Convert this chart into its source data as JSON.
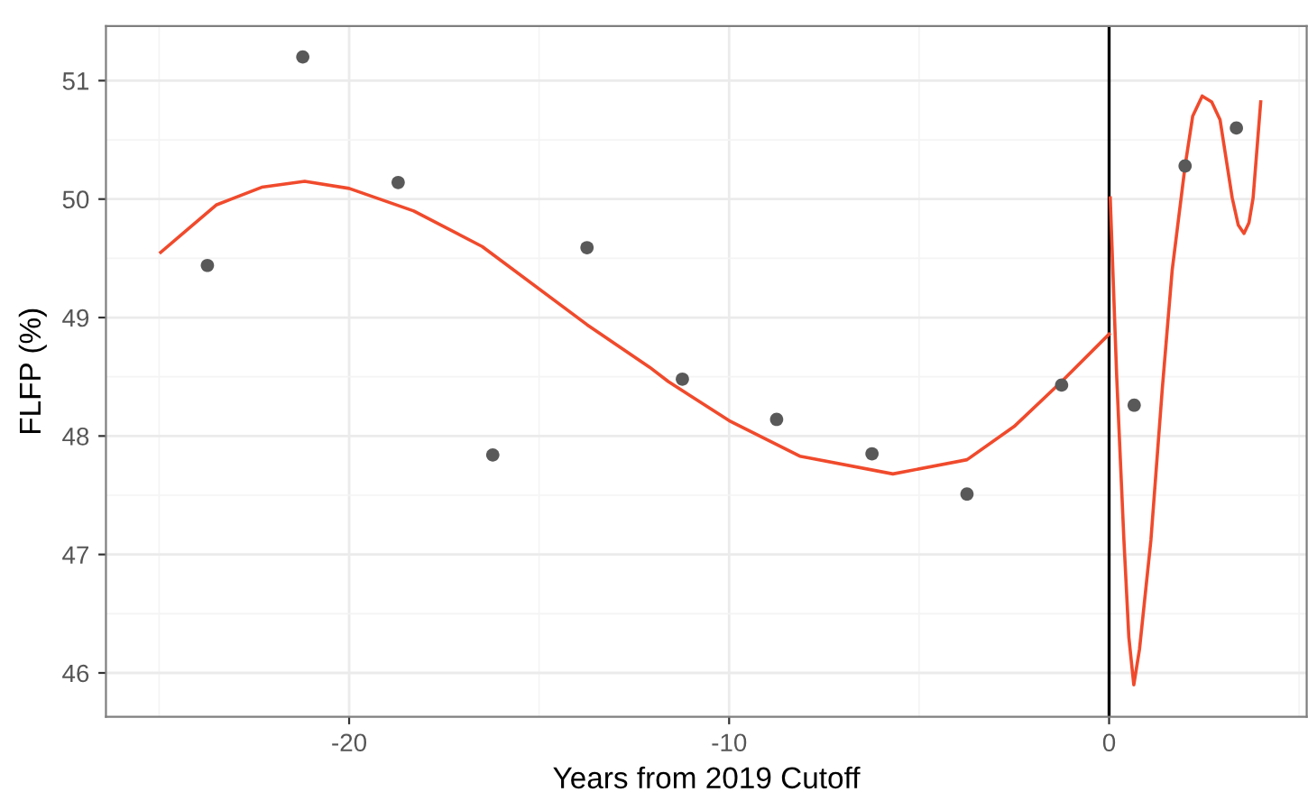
{
  "chart_data": {
    "type": "scatter",
    "xlabel": "Years from 2019 Cutoff",
    "ylabel": "FLFP (%)",
    "xlim": [
      -26.4,
      5.2
    ],
    "ylim": [
      45.63,
      51.46
    ],
    "xticks": [
      -20,
      -10,
      0
    ],
    "yticks": [
      46,
      47,
      48,
      49,
      50,
      51
    ],
    "grid": true,
    "ref_lines": [
      {
        "axis": "x",
        "value": 0,
        "color": "#000000"
      }
    ],
    "series": [
      {
        "color": "#595959",
        "marker": "circle",
        "x": [
          -23.73,
          -21.22,
          -18.71,
          -16.22,
          -13.74,
          -11.23,
          -8.75,
          -6.24,
          -3.74,
          -1.25,
          0.66,
          2.0,
          3.35
        ],
        "values": [
          49.44,
          51.2,
          50.14,
          47.84,
          49.59,
          48.48,
          48.14,
          47.85,
          47.51,
          48.43,
          48.26,
          50.28,
          50.6
        ]
      },
      {
        "type": "line",
        "color": "#f04a2c",
        "x": [
          -24.96,
          -23.5,
          -22.3,
          -21.17,
          -20,
          -18.3,
          -16.5,
          -13.74,
          -12.09,
          -11.6,
          -10,
          -8.14,
          -5.69,
          -3.74,
          -2.5,
          -1.25,
          0
        ],
        "values": [
          49.55,
          49.95,
          50.1,
          50.15,
          50.09,
          49.9,
          49.6,
          48.94,
          48.58,
          48.46,
          48.13,
          47.83,
          47.68,
          47.8,
          48.08,
          48.46,
          48.86
        ]
      },
      {
        "type": "line",
        "color": "#f04a2c",
        "x": [
          0.03,
          0.2,
          0.39,
          0.52,
          0.65,
          0.8,
          1.1,
          1.4,
          1.66,
          2.0,
          2.2,
          2.45,
          2.7,
          2.92,
          3.24,
          3.4,
          3.55,
          3.68,
          3.79,
          3.99
        ],
        "values": [
          50.01,
          48.5,
          47.12,
          46.3,
          45.9,
          46.2,
          47.12,
          48.4,
          49.4,
          50.28,
          50.7,
          50.87,
          50.82,
          50.67,
          50.01,
          49.78,
          49.71,
          49.8,
          50.01,
          50.82
        ]
      }
    ]
  }
}
